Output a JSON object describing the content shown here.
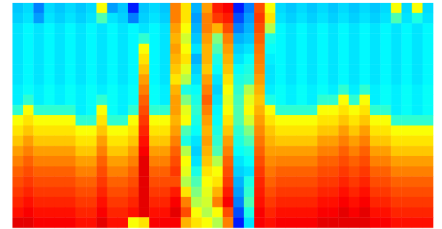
{
  "chart_data": {
    "type": "heatmap",
    "tick_labels": false,
    "value_range": [
      0,
      100
    ],
    "cells": [
      [
        32,
        34,
        25,
        34,
        32,
        34,
        32,
        34,
        62,
        28,
        32,
        15,
        32,
        34,
        32,
        75,
        65,
        30,
        72,
        85,
        88,
        15,
        25,
        80,
        62,
        34,
        32,
        34,
        32,
        34,
        32,
        34,
        32,
        34,
        32,
        34,
        62,
        34,
        62,
        34
      ],
      [
        33,
        35,
        28,
        35,
        33,
        35,
        33,
        35,
        45,
        35,
        33,
        25,
        33,
        35,
        33,
        75,
        65,
        28,
        75,
        82,
        85,
        20,
        28,
        82,
        65,
        35,
        33,
        35,
        33,
        35,
        33,
        35,
        33,
        35,
        33,
        35,
        45,
        35,
        40,
        35
      ],
      [
        35,
        37,
        35,
        37,
        35,
        37,
        35,
        37,
        35,
        37,
        35,
        37,
        35,
        37,
        35,
        72,
        62,
        30,
        75,
        70,
        80,
        25,
        30,
        80,
        55,
        37,
        35,
        37,
        35,
        37,
        35,
        37,
        35,
        37,
        35,
        37,
        35,
        37,
        35,
        37
      ],
      [
        35,
        37,
        35,
        37,
        35,
        37,
        35,
        37,
        35,
        37,
        35,
        37,
        42,
        37,
        35,
        70,
        58,
        32,
        72,
        50,
        75,
        30,
        32,
        78,
        40,
        37,
        35,
        37,
        35,
        37,
        35,
        37,
        35,
        37,
        35,
        37,
        35,
        37,
        35,
        37
      ],
      [
        35,
        37,
        35,
        37,
        35,
        37,
        35,
        37,
        35,
        37,
        35,
        37,
        62,
        37,
        35,
        72,
        62,
        35,
        70,
        45,
        72,
        33,
        35,
        76,
        38,
        37,
        35,
        37,
        35,
        37,
        35,
        37,
        35,
        37,
        35,
        37,
        35,
        37,
        35,
        37
      ],
      [
        35,
        37,
        35,
        37,
        35,
        37,
        35,
        37,
        35,
        37,
        35,
        37,
        65,
        37,
        35,
        70,
        65,
        30,
        70,
        40,
        70,
        35,
        38,
        75,
        36,
        37,
        35,
        37,
        35,
        37,
        35,
        37,
        35,
        37,
        35,
        37,
        35,
        37,
        35,
        37
      ],
      [
        35,
        37,
        35,
        37,
        35,
        37,
        35,
        37,
        35,
        37,
        35,
        37,
        68,
        37,
        35,
        68,
        60,
        33,
        68,
        38,
        68,
        38,
        40,
        74,
        35,
        37,
        35,
        37,
        35,
        37,
        35,
        37,
        35,
        37,
        35,
        37,
        35,
        37,
        35,
        37
      ],
      [
        35,
        37,
        35,
        37,
        35,
        37,
        35,
        37,
        35,
        37,
        35,
        37,
        72,
        37,
        35,
        65,
        55,
        35,
        72,
        35,
        65,
        40,
        42,
        72,
        35,
        37,
        35,
        37,
        35,
        37,
        35,
        37,
        35,
        37,
        35,
        37,
        35,
        37,
        35,
        37
      ],
      [
        36,
        38,
        36,
        38,
        36,
        38,
        36,
        38,
        36,
        38,
        36,
        38,
        75,
        38,
        36,
        70,
        40,
        38,
        75,
        33,
        62,
        42,
        55,
        70,
        36,
        38,
        36,
        38,
        36,
        38,
        36,
        42,
        36,
        42,
        36,
        38,
        36,
        38,
        36,
        38
      ],
      [
        36,
        42,
        36,
        38,
        36,
        38,
        36,
        38,
        42,
        38,
        36,
        38,
        78,
        38,
        36,
        72,
        50,
        40,
        78,
        35,
        60,
        44,
        60,
        68,
        40,
        38,
        36,
        38,
        36,
        42,
        42,
        62,
        42,
        62,
        36,
        38,
        36,
        38,
        36,
        38
      ],
      [
        42,
        62,
        42,
        42,
        42,
        42,
        36,
        38,
        62,
        38,
        36,
        42,
        80,
        42,
        42,
        72,
        60,
        42,
        75,
        37,
        62,
        45,
        62,
        70,
        62,
        42,
        42,
        42,
        42,
        62,
        62,
        65,
        62,
        65,
        42,
        42,
        36,
        38,
        36,
        38
      ],
      [
        62,
        65,
        62,
        62,
        62,
        62,
        42,
        42,
        65,
        42,
        42,
        62,
        82,
        62,
        62,
        70,
        62,
        40,
        72,
        38,
        65,
        45,
        58,
        72,
        65,
        62,
        62,
        62,
        62,
        65,
        65,
        68,
        65,
        68,
        62,
        62,
        42,
        42,
        42,
        42
      ],
      [
        65,
        68,
        65,
        65,
        65,
        65,
        62,
        62,
        68,
        62,
        62,
        65,
        84,
        65,
        65,
        72,
        45,
        38,
        70,
        40,
        68,
        42,
        50,
        74,
        68,
        65,
        65,
        65,
        65,
        68,
        68,
        72,
        68,
        72,
        65,
        65,
        62,
        62,
        62,
        62
      ],
      [
        68,
        72,
        68,
        68,
        68,
        68,
        65,
        65,
        72,
        65,
        65,
        68,
        86,
        68,
        68,
        75,
        40,
        35,
        72,
        42,
        72,
        40,
        45,
        76,
        70,
        68,
        68,
        68,
        68,
        72,
        72,
        75,
        72,
        75,
        68,
        68,
        65,
        65,
        65,
        65
      ],
      [
        72,
        75,
        72,
        72,
        72,
        72,
        68,
        68,
        75,
        68,
        68,
        72,
        88,
        72,
        72,
        78,
        55,
        33,
        70,
        45,
        75,
        38,
        40,
        78,
        72,
        72,
        72,
        72,
        72,
        75,
        75,
        78,
        75,
        78,
        72,
        72,
        68,
        68,
        68,
        68
      ],
      [
        75,
        78,
        75,
        75,
        75,
        75,
        72,
        72,
        78,
        72,
        72,
        75,
        90,
        75,
        75,
        80,
        62,
        35,
        68,
        55,
        78,
        35,
        38,
        80,
        74,
        75,
        75,
        75,
        75,
        78,
        78,
        80,
        78,
        80,
        75,
        75,
        72,
        72,
        72,
        72
      ],
      [
        78,
        80,
        78,
        78,
        78,
        78,
        75,
        75,
        80,
        75,
        75,
        78,
        90,
        78,
        78,
        82,
        60,
        40,
        65,
        62,
        80,
        33,
        35,
        82,
        76,
        78,
        78,
        78,
        78,
        80,
        80,
        82,
        80,
        82,
        78,
        78,
        75,
        75,
        75,
        75
      ],
      [
        80,
        82,
        80,
        80,
        80,
        80,
        78,
        78,
        82,
        78,
        78,
        80,
        90,
        80,
        80,
        80,
        55,
        45,
        62,
        65,
        82,
        30,
        40,
        84,
        78,
        80,
        80,
        80,
        80,
        82,
        82,
        84,
        82,
        84,
        80,
        80,
        78,
        78,
        78,
        78
      ],
      [
        82,
        84,
        82,
        82,
        82,
        82,
        80,
        80,
        84,
        80,
        80,
        82,
        90,
        82,
        82,
        85,
        65,
        50,
        60,
        70,
        85,
        28,
        42,
        85,
        80,
        82,
        82,
        82,
        82,
        84,
        84,
        86,
        84,
        86,
        82,
        82,
        80,
        80,
        80,
        80
      ],
      [
        84,
        86,
        84,
        84,
        84,
        84,
        82,
        82,
        86,
        82,
        82,
        84,
        90,
        84,
        84,
        88,
        75,
        55,
        58,
        75,
        88,
        25,
        45,
        86,
        82,
        84,
        84,
        84,
        84,
        86,
        86,
        88,
        86,
        88,
        84,
        84,
        82,
        82,
        82,
        82
      ],
      [
        86,
        88,
        86,
        86,
        86,
        86,
        84,
        84,
        88,
        84,
        84,
        86,
        90,
        86,
        86,
        90,
        80,
        62,
        55,
        62,
        80,
        20,
        40,
        88,
        84,
        86,
        86,
        86,
        86,
        88,
        88,
        90,
        88,
        90,
        86,
        86,
        84,
        84,
        84,
        84
      ],
      [
        90,
        90,
        88,
        88,
        88,
        88,
        86,
        86,
        90,
        86,
        86,
        62,
        65,
        88,
        88,
        88,
        70,
        65,
        62,
        55,
        75,
        15,
        35,
        88,
        86,
        88,
        88,
        88,
        88,
        90,
        90,
        90,
        90,
        90,
        88,
        88,
        86,
        86,
        86,
        86
      ]
    ]
  }
}
